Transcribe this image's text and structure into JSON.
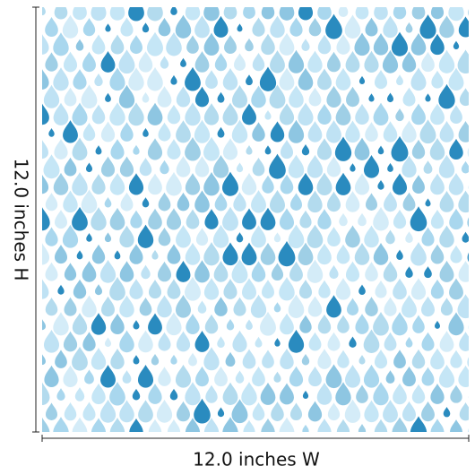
{
  "dimensions": {
    "height_label": "12.0 inches H",
    "width_label": "12.0 inches W"
  }
}
